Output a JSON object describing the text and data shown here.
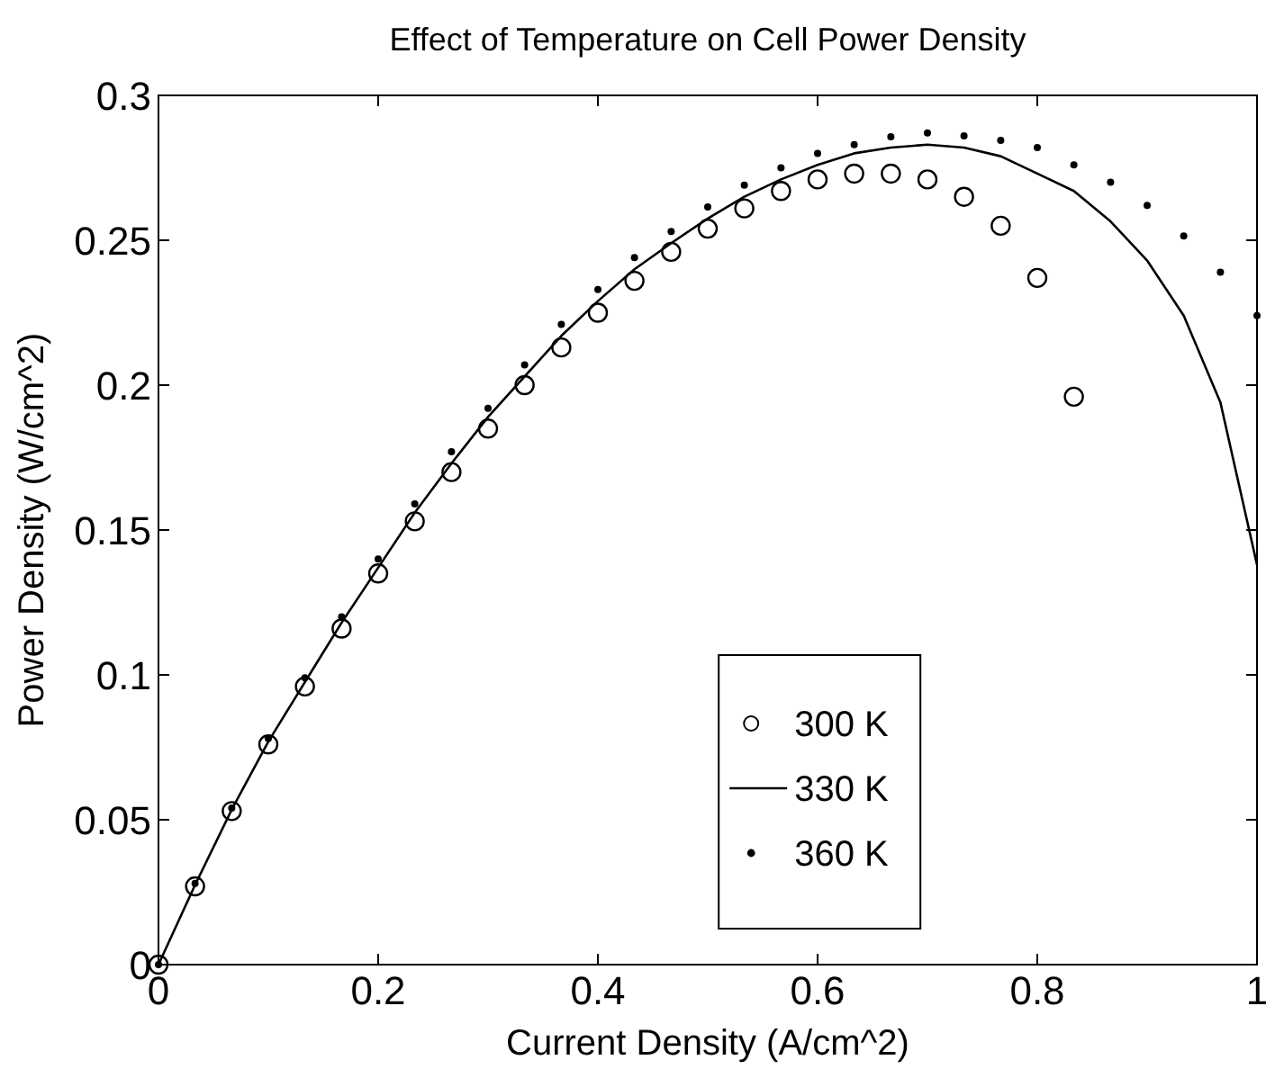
{
  "chart_data": {
    "type": "scatter",
    "title": "Effect of Temperature on Cell Power Density",
    "xlabel": "Current Density (A/cm^2)",
    "ylabel": "Power Density (W/cm^2)",
    "xlim": [
      0,
      1
    ],
    "ylim": [
      0,
      0.3
    ],
    "xticks": [
      0,
      0.2,
      0.4,
      0.6,
      0.8,
      1
    ],
    "yticks": [
      0,
      0.05,
      0.1,
      0.15,
      0.2,
      0.25,
      0.3
    ],
    "grid": false,
    "legend": "bottom right",
    "series": [
      {
        "name": "300 K",
        "marker": "circle",
        "color": "#000000",
        "x": [
          0,
          0.0333,
          0.0667,
          0.1,
          0.1333,
          0.1667,
          0.2,
          0.2333,
          0.2667,
          0.3,
          0.3333,
          0.3667,
          0.4,
          0.4333,
          0.4667,
          0.5,
          0.5333,
          0.5667,
          0.6,
          0.6333,
          0.6667,
          0.7,
          0.7333,
          0.7667,
          0.8,
          0.8333
        ],
        "values": [
          0,
          0.027,
          0.053,
          0.076,
          0.096,
          0.116,
          0.135,
          0.153,
          0.17,
          0.185,
          0.2,
          0.213,
          0.225,
          0.236,
          0.246,
          0.254,
          0.261,
          0.267,
          0.271,
          0.273,
          0.273,
          0.271,
          0.265,
          0.255,
          0.237,
          0.196
        ]
      },
      {
        "name": "330 K",
        "type": "line",
        "marker": "none",
        "line_style": "solid",
        "color": "#000000",
        "x": [
          0,
          0.0333,
          0.0667,
          0.1,
          0.1333,
          0.1667,
          0.2,
          0.2333,
          0.2667,
          0.3,
          0.3333,
          0.3667,
          0.4,
          0.4333,
          0.4667,
          0.5,
          0.5333,
          0.5667,
          0.6,
          0.6333,
          0.6667,
          0.7,
          0.7333,
          0.7667,
          0.8,
          0.8333,
          0.8667,
          0.9,
          0.9333,
          0.9667,
          1
        ],
        "values": [
          0,
          0.0275,
          0.0535,
          0.077,
          0.0975,
          0.118,
          0.137,
          0.156,
          0.173,
          0.189,
          0.203,
          0.217,
          0.229,
          0.24,
          0.249,
          0.2575,
          0.265,
          0.271,
          0.276,
          0.28,
          0.282,
          0.283,
          0.282,
          0.279,
          0.273,
          0.267,
          0.2565,
          0.243,
          0.224,
          0.194,
          0.138
        ]
      },
      {
        "name": "360 K",
        "marker": "dot",
        "color": "#000000",
        "x": [
          0,
          0.0333,
          0.0667,
          0.1,
          0.1333,
          0.1667,
          0.2,
          0.2333,
          0.2667,
          0.3,
          0.3333,
          0.3667,
          0.4,
          0.4333,
          0.4667,
          0.5,
          0.5333,
          0.5667,
          0.6,
          0.6333,
          0.6667,
          0.7,
          0.7333,
          0.7667,
          0.8,
          0.8333,
          0.8667,
          0.9,
          0.9333,
          0.9667,
          1
        ],
        "values": [
          0,
          0.028,
          0.054,
          0.078,
          0.099,
          0.12,
          0.14,
          0.159,
          0.177,
          0.192,
          0.207,
          0.221,
          0.233,
          0.244,
          0.253,
          0.2615,
          0.269,
          0.275,
          0.28,
          0.283,
          0.2857,
          0.287,
          0.286,
          0.2845,
          0.282,
          0.276,
          0.27,
          0.262,
          0.2515,
          0.239,
          0.224
        ]
      }
    ]
  }
}
